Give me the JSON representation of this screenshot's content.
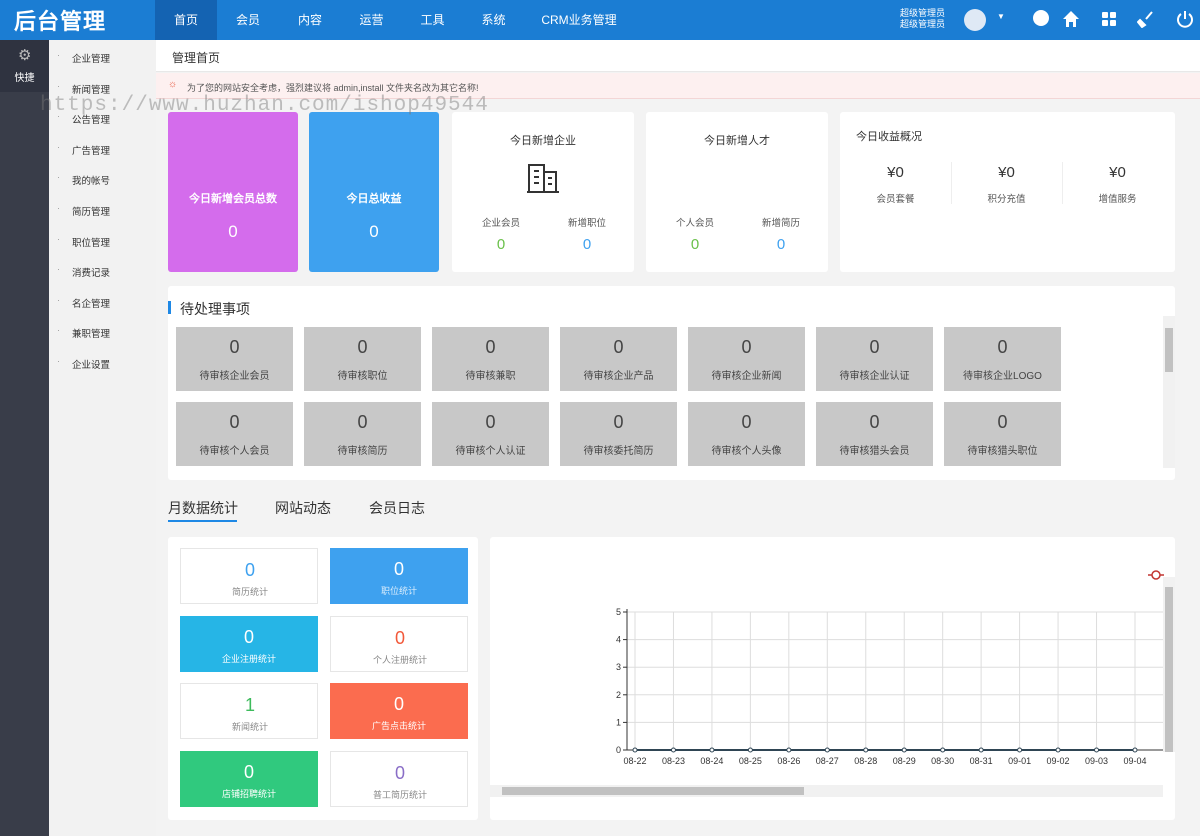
{
  "header": {
    "logo": "后台管理",
    "nav": [
      "首页",
      "会员",
      "内容",
      "运营",
      "工具",
      "系统",
      "CRM业务管理"
    ],
    "user": [
      "超级管理员",
      "超级管理员"
    ]
  },
  "sidebar": {
    "quick": "快捷",
    "menu": [
      "企业管理",
      "新闻管理",
      "公告管理",
      "广告管理",
      "我的帐号",
      "简历管理",
      "职位管理",
      "消费记录",
      "名企管理",
      "兼职管理",
      "企业设置"
    ]
  },
  "breadcrumb": "管理首页",
  "notice": "为了您的网站安全考虑，强烈建议将 admin,install 文件夹名改为其它名称!",
  "watermark": "https://www.huzhan.com/ishop49544",
  "stats": {
    "members": {
      "label": "今日新增会员总数",
      "value": 0
    },
    "revenue": {
      "label": "今日总收益",
      "value": 0
    },
    "companies": {
      "title": "今日新增企业",
      "items": [
        {
          "label": "企业会员",
          "value": 0
        },
        {
          "label": "新增职位",
          "value": 0
        }
      ]
    },
    "talents": {
      "title": "今日新增人才",
      "items": [
        {
          "label": "个人会员",
          "value": 0
        },
        {
          "label": "新增简历",
          "value": 0
        }
      ]
    },
    "income": {
      "title": "今日收益概况",
      "items": [
        {
          "value": "¥0",
          "label": "会员套餐"
        },
        {
          "value": "¥0",
          "label": "积分充值"
        },
        {
          "value": "¥0",
          "label": "增值服务"
        }
      ]
    }
  },
  "pending": {
    "title": "待处理事项",
    "items": [
      {
        "count": 0,
        "label": "待审核企业会员"
      },
      {
        "count": 0,
        "label": "待审核职位"
      },
      {
        "count": 0,
        "label": "待审核兼职"
      },
      {
        "count": 0,
        "label": "待审核企业产品"
      },
      {
        "count": 0,
        "label": "待审核企业新闻"
      },
      {
        "count": 0,
        "label": "待审核企业认证"
      },
      {
        "count": 0,
        "label": "待审核企业LOGO"
      },
      {
        "count": 0,
        "label": "待审核个人会员"
      },
      {
        "count": 0,
        "label": "待审核简历"
      },
      {
        "count": 0,
        "label": "待审核个人认证"
      },
      {
        "count": 0,
        "label": "待审核委托简历"
      },
      {
        "count": 0,
        "label": "待审核个人头像"
      },
      {
        "count": 0,
        "label": "待审核猎头会员"
      },
      {
        "count": 0,
        "label": "待审核猎头职位"
      }
    ]
  },
  "tabs": [
    "月数据统计",
    "网站动态",
    "会员日志"
  ],
  "monthly": [
    {
      "value": 0,
      "label": "简历统计"
    },
    {
      "value": 0,
      "label": "职位统计"
    },
    {
      "value": 0,
      "label": "企业注册统计"
    },
    {
      "value": 0,
      "label": "个人注册统计"
    },
    {
      "value": 1,
      "label": "新闻统计"
    },
    {
      "value": 0,
      "label": "广告点击统计"
    },
    {
      "value": 0,
      "label": "店铺招聘统计"
    },
    {
      "value": 0,
      "label": "普工简历统计"
    }
  ],
  "chart": {
    "type": "line",
    "categories": [
      "08-22",
      "08-23",
      "08-24",
      "08-25",
      "08-26",
      "08-27",
      "08-28",
      "08-29",
      "08-30",
      "08-31",
      "09-01",
      "09-02",
      "09-03",
      "09-04"
    ],
    "series": [
      {
        "color": "#c23531",
        "values": [
          0,
          0,
          0,
          0,
          0,
          0,
          0,
          0,
          0,
          0,
          0,
          0,
          0,
          0
        ]
      }
    ],
    "ylim": [
      0,
      5
    ],
    "yticks": [
      0,
      1,
      2,
      3,
      4,
      5
    ],
    "grid": true
  }
}
